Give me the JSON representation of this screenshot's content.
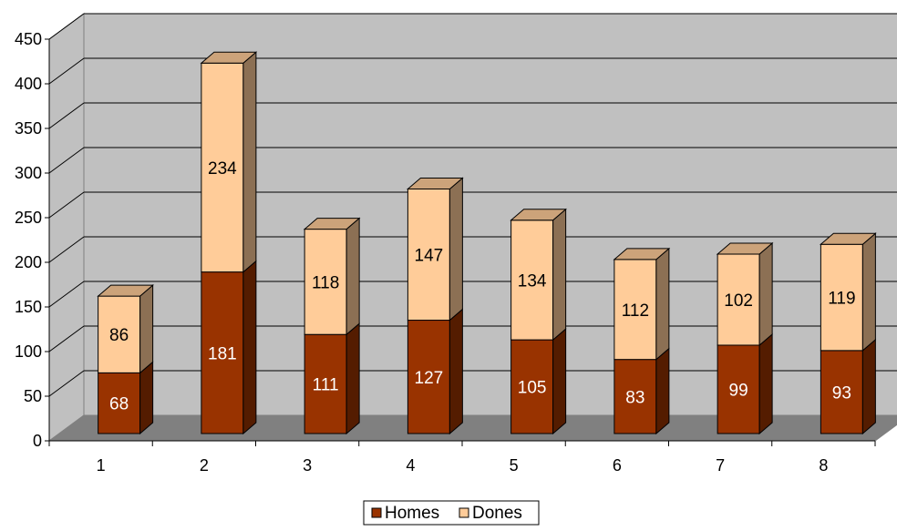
{
  "chart_data": {
    "type": "bar",
    "stacked": true,
    "three_d": true,
    "categories": [
      "1",
      "2",
      "3",
      "4",
      "5",
      "6",
      "7",
      "8"
    ],
    "series": [
      {
        "name": "Homes",
        "values": [
          68,
          181,
          111,
          127,
          105,
          83,
          99,
          93
        ],
        "color": "#993300",
        "label_color": "#ffffff"
      },
      {
        "name": "Dones",
        "values": [
          86,
          234,
          118,
          147,
          134,
          112,
          102,
          119
        ],
        "color": "#ffcc99",
        "label_color": "#000000"
      }
    ],
    "ylim": [
      0,
      450
    ],
    "yticks": [
      "0",
      "50",
      "100",
      "150",
      "200",
      "250",
      "300",
      "350",
      "400",
      "450"
    ],
    "grid": true,
    "legend": "bottom-center",
    "wall_color": "#c0c0c0",
    "floor_color": "#808080"
  }
}
